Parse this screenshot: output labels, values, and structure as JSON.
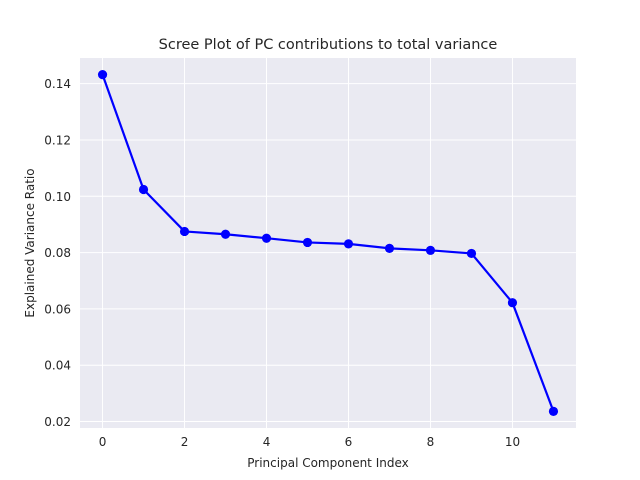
{
  "chart_data": {
    "type": "line",
    "title": "Scree Plot of PC contributions to total variance",
    "xlabel": "Principal Component Index",
    "ylabel": "Explained Variance Ratio",
    "x": [
      0,
      1,
      2,
      3,
      4,
      5,
      6,
      7,
      8,
      9,
      10,
      11
    ],
    "series": [
      {
        "values": [
          0.1432,
          0.1024,
          0.0875,
          0.0865,
          0.0851,
          0.0836,
          0.0831,
          0.0815,
          0.0808,
          0.0797,
          0.0622,
          0.0236
        ]
      }
    ],
    "xlim": [
      -0.55,
      11.55
    ],
    "ylim": [
      0.0177,
      0.1491
    ],
    "xticks": [
      0,
      2,
      4,
      6,
      8,
      10
    ],
    "xtick_labels": [
      "0",
      "2",
      "4",
      "6",
      "8",
      "10"
    ],
    "yticks": [
      0.02,
      0.04,
      0.06,
      0.08,
      0.1,
      0.12,
      0.14
    ],
    "ytick_labels": [
      "0.02",
      "0.04",
      "0.06",
      "0.08",
      "0.10",
      "0.12",
      "0.14"
    ],
    "grid": true,
    "colors": {
      "line": "#0000ff",
      "marker": "#0000ff",
      "plot_background": "#eaeaf2",
      "grid": "#ffffff"
    },
    "marker": "circle"
  }
}
